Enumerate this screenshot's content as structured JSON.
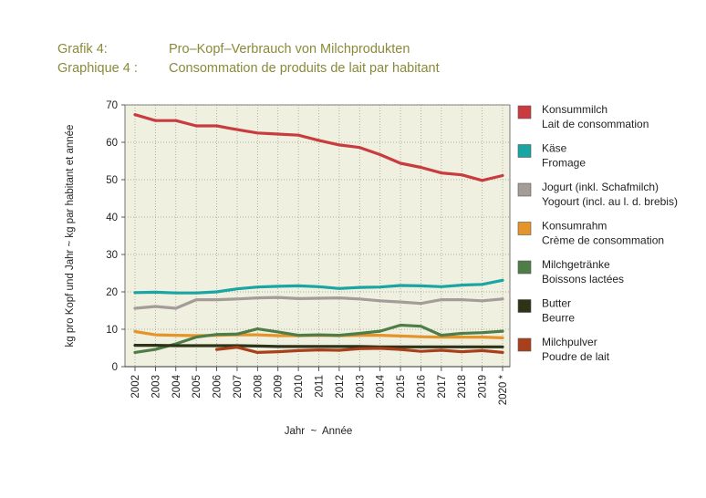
{
  "title": {
    "de_label": "Grafik 4:",
    "de_text": "Pro–Kopf–Verbrauch von Milchprodukten",
    "fr_label": "Graphique 4 :",
    "fr_text": "Consommation de produits de lait par habitant"
  },
  "chart_data": {
    "type": "line",
    "xlabel": "Jahr  ~  Année",
    "ylabel": "kg pro Kopf und Jahr  ~  kg par habitant et année",
    "ylim": [
      0,
      70
    ],
    "yticks": [
      0,
      10,
      20,
      30,
      40,
      50,
      60,
      70
    ],
    "x": [
      "2002",
      "2003",
      "2004",
      "2005",
      "2006",
      "2007",
      "2008",
      "2009",
      "2010",
      "2011",
      "2012",
      "2013",
      "2014",
      "2015",
      "2016",
      "2017",
      "2018",
      "2019",
      "2020 *"
    ],
    "grid": "dotted",
    "legend_position": "right",
    "background": "#eff0df",
    "series": [
      {
        "name": "Konsummilch",
        "name2": "Lait de consommation",
        "color": "#c83c40",
        "values": [
          67.4,
          65.8,
          65.8,
          64.4,
          64.4,
          63.4,
          62.5,
          62.2,
          61.9,
          60.5,
          59.3,
          58.6,
          56.7,
          54.4,
          53.3,
          51.8,
          51.3,
          49.8,
          51.1
        ]
      },
      {
        "name": "Käse",
        "name2": "Fromage",
        "color": "#18a5a3",
        "values": [
          19.8,
          19.9,
          19.7,
          19.7,
          20.0,
          20.8,
          21.3,
          21.5,
          21.6,
          21.4,
          20.9,
          21.2,
          21.3,
          21.7,
          21.6,
          21.4,
          21.8,
          22.0,
          23.1
        ]
      },
      {
        "name": "Jogurt (inkl. Schafmilch)",
        "name2": "Yogourt (incl. au l. d. brebis)",
        "color": "#a39c98",
        "values": [
          15.6,
          16.1,
          15.6,
          17.9,
          17.9,
          18.1,
          18.4,
          18.5,
          18.2,
          18.3,
          18.4,
          18.1,
          17.6,
          17.3,
          16.9,
          17.9,
          17.9,
          17.6,
          18.1
        ]
      },
      {
        "name": "Konsumrahm",
        "name2": "Crème de consommation",
        "color": "#e5942a",
        "values": [
          9.4,
          8.5,
          8.4,
          8.3,
          8.4,
          8.5,
          8.5,
          8.3,
          8.3,
          8.4,
          8.3,
          8.4,
          8.4,
          8.2,
          8.0,
          7.9,
          7.9,
          7.9,
          7.7
        ]
      },
      {
        "name": "Milchgetränke",
        "name2": "Boissons lactées",
        "color": "#4f7d47",
        "values": [
          3.8,
          4.6,
          6.1,
          7.9,
          8.6,
          8.7,
          10.1,
          9.3,
          8.4,
          8.5,
          8.4,
          8.9,
          9.5,
          11.1,
          10.8,
          8.4,
          8.9,
          9.1,
          9.5
        ]
      },
      {
        "name": "Butter",
        "name2": "Beurre",
        "color": "#2e3318",
        "values": [
          5.7,
          5.7,
          5.6,
          5.6,
          5.6,
          5.6,
          5.5,
          5.4,
          5.4,
          5.4,
          5.4,
          5.4,
          5.3,
          5.3,
          5.3,
          5.3,
          5.3,
          5.3,
          5.3
        ]
      },
      {
        "name": "Milchpulver",
        "name2": "Poudre de lait",
        "color": "#a8401c",
        "values": [
          null,
          null,
          null,
          null,
          4.6,
          5.2,
          3.8,
          4.0,
          4.3,
          4.5,
          4.4,
          4.8,
          4.9,
          4.6,
          4.1,
          4.4,
          4.0,
          4.3,
          3.8
        ]
      }
    ]
  }
}
